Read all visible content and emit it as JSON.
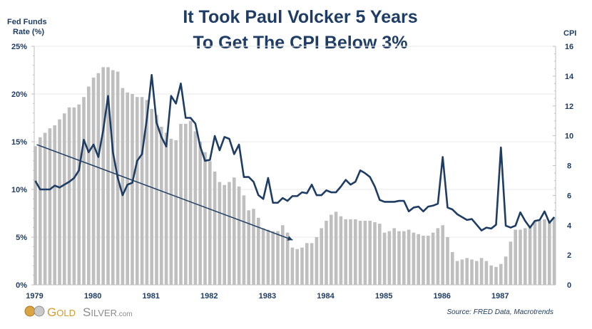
{
  "header": {
    "title_line1": "It Took Paul Volcker 5 Years",
    "title_line2": "To Get The CPI Below 3%"
  },
  "footer": {
    "logo_text": "GoldSilver.com",
    "source": "Source: FRED Data, Macrotrends"
  },
  "colors": {
    "line": "#1f3d64",
    "bars": "#bfbfbf",
    "text": "#1f3d64",
    "grid": "#e8e8e8"
  },
  "chart_data": {
    "type": "bar+line",
    "title": "It Took Paul Volcker 5 Years To Get The CPI Below 3%",
    "left_axis": {
      "label_line1": "Fed Funds",
      "label_line2": "Rate (%)",
      "range": [
        0,
        25
      ],
      "ticks": [
        "0%",
        "5%",
        "10%",
        "15%",
        "20%",
        "25%"
      ]
    },
    "right_axis": {
      "label": "CPI",
      "range": [
        0,
        16
      ],
      "ticks": [
        "0",
        "2",
        "4",
        "6",
        "8",
        "10",
        "12",
        "14",
        "16"
      ]
    },
    "x_ticks": [
      "1979",
      "1980",
      "1981",
      "1982",
      "1983",
      "1984",
      "1985",
      "1986",
      "1987"
    ],
    "x_start": "1979-01",
    "frequency": "monthly",
    "grid": true,
    "bars": {
      "axis": "right",
      "values": [
        9.3,
        9.9,
        10.2,
        10.5,
        10.7,
        11.1,
        11.5,
        11.9,
        11.9,
        12.1,
        12.6,
        13.3,
        13.9,
        14.2,
        14.6,
        14.6,
        14.4,
        14.3,
        13.2,
        12.9,
        12.8,
        12.6,
        12.6,
        12.4,
        11.8,
        11.4,
        10.6,
        10.2,
        9.8,
        9.7,
        10.8,
        10.8,
        11.0,
        10.3,
        9.6,
        8.9,
        8.3,
        7.6,
        6.9,
        6.7,
        6.9,
        7.2,
        6.6,
        6.0,
        5.0,
        5.1,
        4.5,
        3.8,
        3.7,
        3.6,
        3.6,
        4.0,
        3.5,
        2.5,
        2.4,
        2.5,
        2.8,
        2.8,
        3.2,
        3.8,
        4.3,
        4.7,
        4.9,
        4.6,
        4.4,
        4.4,
        4.4,
        4.3,
        4.3,
        4.3,
        4.2,
        4.1,
        3.5,
        3.6,
        3.8,
        3.6,
        3.6,
        3.7,
        3.5,
        3.4,
        3.3,
        3.3,
        3.5,
        3.8,
        4.0,
        3.2,
        2.2,
        1.6,
        1.7,
        1.8,
        1.7,
        1.6,
        1.8,
        1.6,
        1.3,
        1.2,
        1.4,
        1.9,
        2.9,
        3.7,
        3.7,
        3.8,
        3.9,
        4.3,
        4.3,
        4.4,
        4.3,
        4.5
      ]
    },
    "line": {
      "axis": "left",
      "values": [
        10.9,
        10.0,
        10.0,
        10.0,
        10.4,
        10.2,
        10.5,
        10.8,
        11.2,
        12.0,
        15.2,
        13.9,
        14.7,
        13.4,
        16.2,
        19.8,
        13.9,
        11.2,
        9.4,
        10.5,
        10.7,
        13.0,
        13.7,
        17.4,
        22.0,
        17.0,
        15.5,
        14.5,
        19.8,
        19.0,
        21.1,
        17.5,
        17.5,
        16.9,
        14.5,
        13.0,
        13.1,
        15.6,
        14.1,
        15.5,
        15.3,
        13.7,
        14.7,
        11.3,
        11.3,
        10.8,
        9.4,
        9.0,
        11.2,
        8.6,
        8.6,
        9.1,
        8.8,
        9.3,
        9.3,
        9.7,
        9.6,
        10.5,
        9.4,
        9.4,
        9.9,
        9.7,
        9.7,
        10.3,
        11.0,
        10.5,
        10.8,
        12.0,
        11.7,
        11.3,
        10.3,
        8.9,
        8.7,
        8.7,
        8.7,
        8.8,
        8.8,
        7.7,
        8.1,
        8.2,
        7.7,
        8.2,
        8.3,
        8.5,
        13.4,
        8.1,
        7.9,
        7.4,
        7.1,
        6.8,
        6.9,
        6.3,
        5.7,
        6.0,
        5.9,
        6.3,
        14.4,
        6.2,
        6.0,
        6.2,
        7.6,
        6.7,
        6.0,
        6.7,
        6.8,
        7.7,
        6.5,
        7.1
      ]
    },
    "trend_arrow": {
      "axis": "left",
      "from": {
        "month": "1979-01",
        "value": 14.7
      },
      "to": {
        "month": "1983-06",
        "value": 4.7
      }
    }
  }
}
